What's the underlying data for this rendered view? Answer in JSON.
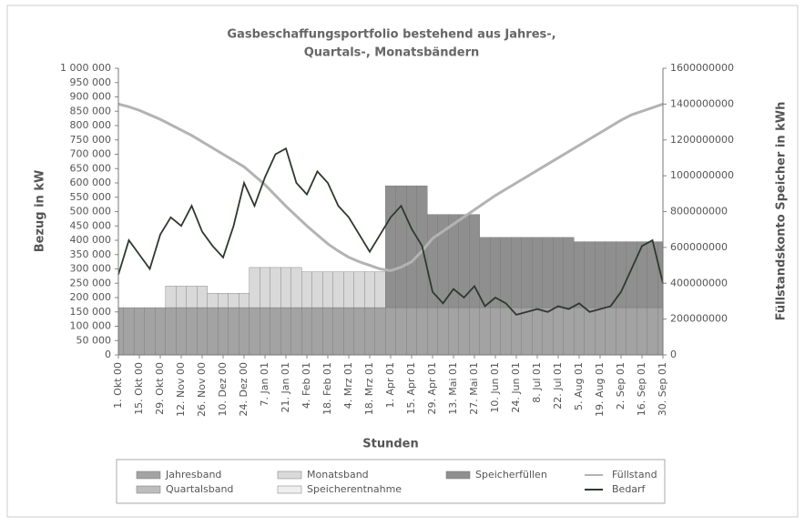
{
  "chart_data": {
    "type": "area",
    "title": [
      "Gasbeschaffungsportfolio bestehend aus Jahres-,",
      "Quartals-, Monatsbändern"
    ],
    "ylabel": "Bezug in kW",
    "y2label": "Füllstandskonto Speicher in kWh",
    "xlabel": "Stunden",
    "categories": [
      "1. Okt 00",
      null,
      "15. Okt 00",
      null,
      "29. Okt 00",
      null,
      "12. Nov 00",
      null,
      "26. Nov 00",
      null,
      "10. Dez 00",
      null,
      "24. Dez 00",
      null,
      "7. Jan 01",
      null,
      "21. Jan 01",
      null,
      "4. Feb 01",
      null,
      "18. Feb 01",
      null,
      "4. Mrz 01",
      null,
      "18. Mrz 01",
      null,
      "1. Apr 01",
      null,
      "15. Apr 01",
      null,
      "29. Apr 01",
      null,
      "13. Mai 01",
      null,
      "27. Mai 01",
      null,
      "10. Jun 01",
      null,
      "24. Jun 01",
      null,
      "8. Jul 01",
      null,
      "22. Jul 01",
      null,
      "5. Aug 01",
      null,
      "19. Aug 01",
      null,
      "2. Sep 01",
      null,
      "16. Sep 01",
      null,
      "30. Sep 01"
    ],
    "ylim": [
      0,
      1000000
    ],
    "yticks": [
      0,
      {
        "value": 50000,
        "label": "50 000"
      },
      {
        "value": 100000,
        "label": "100 000"
      },
      {
        "value": 150000,
        "label": "150 000"
      },
      {
        "value": 200000,
        "label": "200 000"
      },
      {
        "value": 250000,
        "label": "250 000"
      },
      {
        "value": 300000,
        "label": "300 000"
      },
      {
        "value": 350000,
        "label": "350 000"
      },
      {
        "value": 400000,
        "label": "400 000"
      },
      {
        "value": 450000,
        "label": "450 000"
      },
      {
        "value": 500000,
        "label": "500 000"
      },
      {
        "value": 550000,
        "label": "550 000"
      },
      {
        "value": 600000,
        "label": "600 000"
      },
      {
        "value": 650000,
        "label": "650 000"
      },
      {
        "value": 700000,
        "label": "700 000"
      },
      {
        "value": 750000,
        "label": "750 000"
      },
      {
        "value": 800000,
        "label": "800 000"
      },
      {
        "value": 850000,
        "label": "850 000"
      },
      {
        "value": 900000,
        "label": "900 000"
      },
      {
        "value": 950000,
        "label": "950 000"
      },
      {
        "value": 1000000,
        "label": "1 000 000"
      }
    ],
    "y2lim": [
      0,
      1600000000
    ],
    "y2ticks": [
      0,
      200000000,
      400000000,
      600000000,
      800000000,
      1000000000,
      1200000000,
      1400000000,
      1600000000
    ],
    "series": [
      {
        "name": "Jahresband",
        "type": "area",
        "color": "#a3a3a3",
        "values": [
          165000,
          165000,
          165000,
          165000,
          165000,
          165000,
          165000,
          165000,
          165000,
          165000,
          165000,
          165000,
          165000,
          165000,
          165000,
          165000,
          165000,
          165000,
          165000,
          165000,
          165000,
          165000,
          165000,
          165000,
          165000,
          165000,
          165000,
          165000,
          165000,
          165000,
          165000,
          165000,
          165000,
          165000,
          165000,
          165000,
          165000,
          165000,
          165000,
          165000,
          165000,
          165000,
          165000,
          165000,
          165000,
          165000,
          165000,
          165000,
          165000,
          165000,
          165000,
          165000,
          165000
        ]
      },
      {
        "name": "Quartalsband",
        "type": "area",
        "color": "#bdbdbd",
        "values": [
          0,
          0,
          0,
          0,
          0,
          0,
          0,
          0,
          0,
          0,
          0,
          0,
          0,
          0,
          0,
          0,
          0,
          0,
          0,
          0,
          0,
          0,
          0,
          0,
          0,
          0,
          0,
          0,
          0,
          0,
          0,
          0,
          0,
          0,
          0,
          0,
          0,
          0,
          0,
          0,
          0,
          0,
          0,
          0,
          0,
          0,
          0,
          0,
          0,
          0,
          0,
          0,
          0
        ]
      },
      {
        "name": "Monatsband",
        "type": "area",
        "color": "#d9d9d9",
        "values": [
          0,
          0,
          0,
          0,
          0,
          75000,
          75000,
          75000,
          75000,
          50000,
          50000,
          50000,
          50000,
          140000,
          140000,
          140000,
          140000,
          140000,
          125000,
          125000,
          125000,
          125000,
          125000,
          125000,
          125000,
          125000,
          0,
          0,
          0,
          0,
          0,
          0,
          0,
          0,
          0,
          0,
          0,
          0,
          0,
          0,
          0,
          0,
          0,
          0,
          0,
          0,
          0,
          0,
          0,
          0,
          0,
          0,
          0
        ]
      },
      {
        "name": "Speicherentnahme",
        "type": "area",
        "color": "#efefef",
        "values": [
          0,
          0,
          0,
          0,
          0,
          0,
          0,
          0,
          0,
          0,
          0,
          0,
          0,
          0,
          0,
          0,
          0,
          0,
          0,
          0,
          0,
          0,
          0,
          0,
          0,
          0,
          0,
          0,
          0,
          0,
          0,
          0,
          0,
          0,
          0,
          0,
          0,
          0,
          0,
          0,
          0,
          0,
          0,
          0,
          0,
          0,
          0,
          0,
          0,
          0,
          0,
          0,
          0
        ]
      },
      {
        "name": "Speicherfüllen",
        "type": "area",
        "color": "#8f8f8f",
        "values": [
          0,
          0,
          0,
          0,
          0,
          0,
          0,
          0,
          0,
          0,
          0,
          0,
          0,
          0,
          0,
          0,
          0,
          0,
          0,
          0,
          0,
          0,
          0,
          0,
          0,
          0,
          425000,
          425000,
          425000,
          425000,
          325000,
          325000,
          325000,
          325000,
          325000,
          245000,
          245000,
          245000,
          245000,
          245000,
          245000,
          245000,
          245000,
          245000,
          230000,
          230000,
          230000,
          230000,
          230000,
          230000,
          230000,
          230000,
          230000
        ]
      },
      {
        "name": "Füllstand",
        "type": "line",
        "axis": "y2",
        "color": "#b3b3b3",
        "values": [
          1400000000,
          1385000000,
          1365000000,
          1340000000,
          1315000000,
          1285000000,
          1255000000,
          1225000000,
          1190000000,
          1155000000,
          1120000000,
          1085000000,
          1050000000,
          1000000000,
          950000000,
          890000000,
          830000000,
          775000000,
          720000000,
          670000000,
          620000000,
          580000000,
          545000000,
          520000000,
          500000000,
          480000000,
          470000000,
          490000000,
          520000000,
          580000000,
          650000000,
          690000000,
          730000000,
          770000000,
          810000000,
          850000000,
          890000000,
          925000000,
          960000000,
          995000000,
          1030000000,
          1065000000,
          1100000000,
          1135000000,
          1170000000,
          1205000000,
          1240000000,
          1275000000,
          1310000000,
          1340000000,
          1360000000,
          1380000000,
          1400000000
        ]
      },
      {
        "name": "Bedarf",
        "type": "line",
        "color": "#2e3a2e",
        "values": [
          280000,
          400000,
          350000,
          300000,
          420000,
          480000,
          450000,
          520000,
          430000,
          380000,
          340000,
          450000,
          600000,
          520000,
          620000,
          700000,
          720000,
          600000,
          560000,
          640000,
          600000,
          520000,
          480000,
          420000,
          360000,
          420000,
          480000,
          520000,
          440000,
          380000,
          220000,
          180000,
          230000,
          200000,
          240000,
          170000,
          200000,
          180000,
          140000,
          150000,
          160000,
          150000,
          170000,
          160000,
          180000,
          150000,
          160000,
          170000,
          220000,
          300000,
          380000,
          400000,
          250000
        ]
      }
    ]
  }
}
